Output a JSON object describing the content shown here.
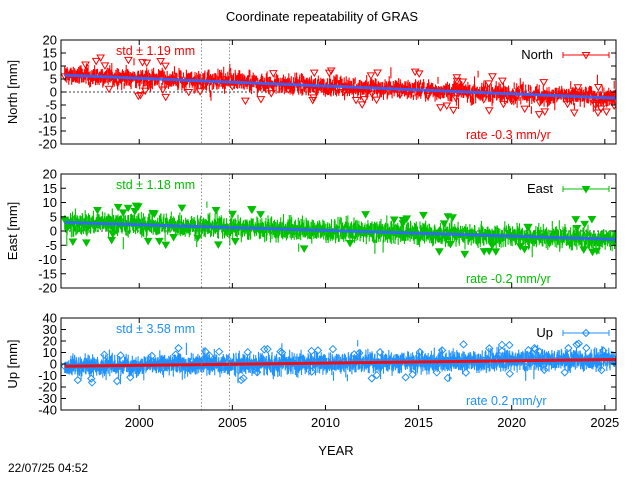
{
  "title": "Coordinate repeatability of GRAS",
  "timestamp": "22/07/25 04:52",
  "chart_data": {
    "type": "scatter",
    "xlabel": "YEAR",
    "xlim": [
      1995.8,
      2025.6
    ],
    "xticks": [
      2000,
      2005,
      2010,
      2015,
      2020,
      2025
    ],
    "vlines": [
      2003.35,
      2004.85
    ],
    "panels": [
      {
        "name": "North",
        "ylabel": "North [mm]",
        "ylim": [
          -20,
          20
        ],
        "yticks": [
          -20,
          -15,
          -10,
          -5,
          0,
          5,
          10,
          15,
          20
        ],
        "color": "#ff0000",
        "trend_color": "#3366ff",
        "marker": "triangle-down-open",
        "std_label": "std ± 1.19 mm",
        "rate_label": "rate -0.3 mm/yr",
        "trend": {
          "start": 6.5,
          "rate": -0.3
        },
        "noise": 3.2,
        "errbar": 1.6,
        "x": [
          1996.0,
          1997.5,
          1999.0,
          2000.5,
          2002.0,
          2003.5,
          2005.0,
          2006.5,
          2008.0,
          2009.5,
          2011.0,
          2012.5,
          2014.0,
          2015.5,
          2017.0,
          2018.5,
          2020.0,
          2021.5,
          2023.0,
          2024.5,
          2025.5
        ],
        "y": [
          6.0,
          5.5,
          5.2,
          4.8,
          4.1,
          3.0,
          2.2,
          1.8,
          1.0,
          0.5,
          0.0,
          -0.6,
          -1.0,
          -1.5,
          -2.2,
          -2.8,
          -3.3,
          -4.0,
          -4.5,
          -5.0,
          -5.2
        ]
      },
      {
        "name": "East",
        "ylabel": "East [mm]",
        "ylim": [
          -20,
          20
        ],
        "yticks": [
          -20,
          -15,
          -10,
          -5,
          0,
          5,
          10,
          15,
          20
        ],
        "color": "#00c000",
        "trend_color": "#3366ff",
        "marker": "triangle-down-filled",
        "std_label": "std ± 1.18 mm",
        "rate_label": "rate -0.2 mm/yr",
        "trend": {
          "start": 3.0,
          "rate": -0.2
        },
        "noise": 3.0,
        "errbar": 1.8,
        "x": [
          1996.0,
          1997.5,
          1999.0,
          2000.5,
          2002.0,
          2003.5,
          2005.0,
          2006.5,
          2008.0,
          2009.5,
          2011.0,
          2012.5,
          2014.0,
          2015.5,
          2017.0,
          2018.5,
          2020.0,
          2021.5,
          2023.0,
          2024.5,
          2025.5
        ],
        "y": [
          4.0,
          2.5,
          2.0,
          1.8,
          1.2,
          0.8,
          0.5,
          0.2,
          0.0,
          -0.3,
          -0.6,
          -1.0,
          -1.2,
          -1.5,
          -1.8,
          -2.0,
          -2.3,
          -2.6,
          -2.9,
          -3.2,
          -3.4
        ]
      },
      {
        "name": "Up",
        "ylabel": "Up [mm]",
        "ylim": [
          -40,
          40
        ],
        "yticks": [
          -40,
          -30,
          -20,
          -10,
          0,
          10,
          20,
          30,
          40
        ],
        "color": "#1e90ff",
        "trend_color": "#ff0000",
        "marker": "diamond-open",
        "std_label": "std ± 3.58 mm",
        "rate_label": "rate  0.2 mm/yr",
        "trend": {
          "start": -2.0,
          "rate": 0.2
        },
        "noise": 6.5,
        "errbar": 4.5,
        "x": [
          1996.0,
          1997.5,
          1999.0,
          2000.5,
          2002.0,
          2003.5,
          2005.0,
          2006.5,
          2008.0,
          2009.5,
          2011.0,
          2012.5,
          2014.0,
          2015.5,
          2017.0,
          2018.5,
          2020.0,
          2021.5,
          2023.0,
          2024.5,
          2025.5
        ],
        "y": [
          -2.0,
          -1.5,
          -1.0,
          -0.5,
          0.0,
          0.5,
          0.8,
          1.0,
          1.2,
          1.5,
          1.8,
          2.0,
          2.2,
          2.5,
          2.8,
          3.0,
          3.2,
          3.5,
          3.8,
          4.0,
          4.2
        ]
      }
    ]
  }
}
